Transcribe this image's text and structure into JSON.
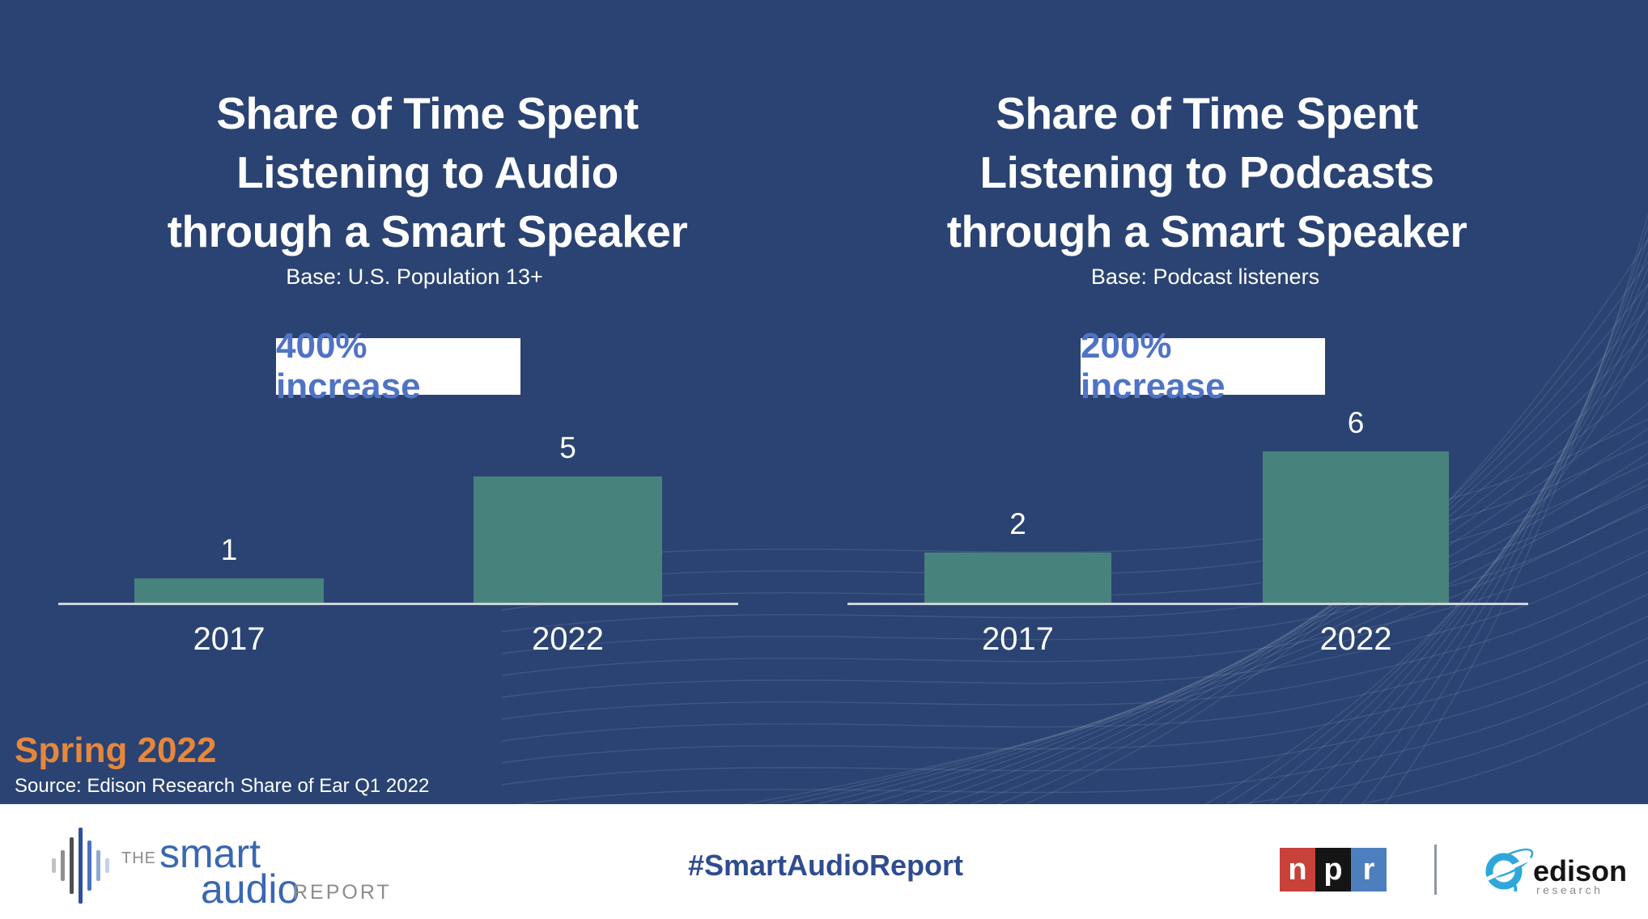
{
  "slide": {
    "background_color": "#2A4372",
    "bar_color": "#48827C",
    "badge_text_color": "#4F73C5",
    "season_color": "#E5873E"
  },
  "chart_data": [
    {
      "type": "bar",
      "title": "Share of Time Spent Listening to Audio through a Smart Speaker",
      "title_lines": [
        "Share of Time Spent",
        "Listening to Audio",
        "through a Smart Speaker"
      ],
      "subtitle": "Base: U.S. Population 13+",
      "annotation": "400% increase",
      "categories": [
        "2017",
        "2022"
      ],
      "values": [
        1,
        5
      ],
      "ylim": [
        0,
        6
      ],
      "grid": false,
      "legend": "none"
    },
    {
      "type": "bar",
      "title": "Share of Time Spent Listening to Podcasts through a Smart Speaker",
      "title_lines": [
        "Share of Time Spent",
        "Listening to Podcasts",
        "through a Smart Speaker"
      ],
      "subtitle": "Base: Podcast listeners",
      "annotation": "200% increase",
      "categories": [
        "2017",
        "2022"
      ],
      "values": [
        2,
        6
      ],
      "ylim": [
        0,
        6
      ],
      "grid": false,
      "legend": "none"
    }
  ],
  "annotations": {
    "season": "Spring 2022",
    "source": "Source: Edison Research Share of Ear Q1 2022"
  },
  "footer": {
    "smart_logo": {
      "the": "THE",
      "smart": "smart",
      "audio": "audio",
      "report": "REPORT"
    },
    "hashtag": "#SmartAudioReport",
    "npr": {
      "letters": [
        "n",
        "p",
        "r"
      ],
      "colors": [
        "#C8413A",
        "#151515",
        "#4D7FBE"
      ]
    },
    "edison": {
      "name": "edison",
      "sub": "research",
      "icon_color": "#2FA7DB"
    }
  }
}
